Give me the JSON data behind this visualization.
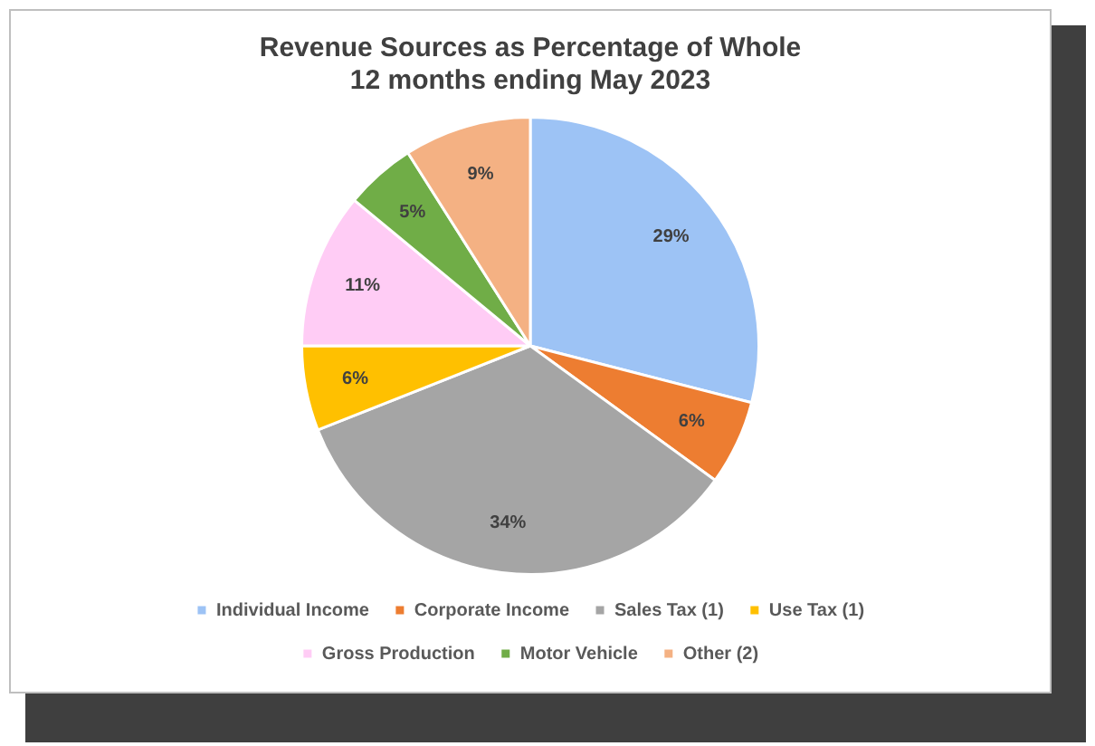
{
  "chart_data": {
    "type": "pie",
    "title": "Revenue Sources as Percentage of Whole\n12 months ending May 2023",
    "categories": [
      "Individual Income",
      "Corporate Income",
      "Sales Tax (1)",
      "Use Tax (1)",
      "Gross Production",
      "Motor Vehicle",
      "Other (2)"
    ],
    "values": [
      29,
      6,
      34,
      6,
      11,
      5,
      9
    ],
    "value_labels": [
      "29%",
      "6%",
      "34%",
      "6%",
      "11%",
      "5%",
      "9%"
    ],
    "colors": [
      "#9dc3f5",
      "#ed7d31",
      "#a5a5a5",
      "#ffc000",
      "#ffccf5",
      "#70ad47",
      "#f4b183"
    ],
    "legend": "bottom"
  }
}
